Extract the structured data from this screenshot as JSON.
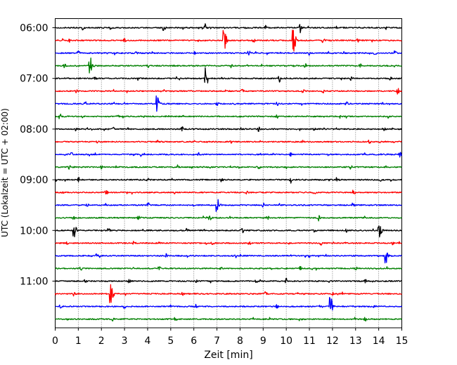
{
  "chart_data": {
    "type": "line",
    "title": "",
    "xlabel": "Zeit  [min]",
    "ylabel": "UTC (Lokalzeit = UTC + 02:00)",
    "xlim": [
      0,
      15
    ],
    "x_ticks": [
      0,
      1,
      2,
      3,
      4,
      5,
      6,
      7,
      8,
      9,
      10,
      11,
      12,
      13,
      14,
      15
    ],
    "y_tick_labels": [
      "06:00",
      "07:00",
      "08:00",
      "09:00",
      "10:00",
      "11:00"
    ],
    "y_tick_rows": [
      0,
      4,
      8,
      12,
      16,
      20
    ],
    "grid": "vertical dotted",
    "legend": "none",
    "trace_colors": [
      "#000000",
      "#ff0000",
      "#0000ff",
      "#008000"
    ],
    "trace_interval_min": 15,
    "traces": [
      {
        "start": "06:00",
        "color": "#000000",
        "events": [
          [
            1.2,
            0.4
          ],
          [
            2.4,
            0.3
          ],
          [
            4.7,
            0.5
          ],
          [
            6.5,
            0.7
          ],
          [
            9.1,
            0.35
          ],
          [
            10.6,
            1.0
          ],
          [
            12.2,
            0.35
          ],
          [
            14.3,
            0.3
          ]
        ]
      },
      {
        "start": "06:15",
        "color": "#ff0000",
        "events": [
          [
            0.6,
            0.35
          ],
          [
            3.0,
            0.3
          ],
          [
            7.3,
            2.2
          ],
          [
            8.6,
            0.3
          ],
          [
            10.3,
            2.4
          ],
          [
            11.6,
            0.35
          ],
          [
            13.1,
            0.3
          ]
        ]
      },
      {
        "start": "06:30",
        "color": "#0000ff",
        "events": [
          [
            1.0,
            0.4
          ],
          [
            3.5,
            0.35
          ],
          [
            6.0,
            0.3
          ],
          [
            8.4,
            0.3
          ],
          [
            11.0,
            0.35
          ],
          [
            13.8,
            0.4
          ],
          [
            14.7,
            0.35
          ]
        ]
      },
      {
        "start": "06:45",
        "color": "#008000",
        "events": [
          [
            0.4,
            0.3
          ],
          [
            1.5,
            1.5
          ],
          [
            4.0,
            0.3
          ],
          [
            7.6,
            0.3
          ],
          [
            10.8,
            0.35
          ],
          [
            13.2,
            0.3
          ]
        ]
      },
      {
        "start": "07:00",
        "color": "#000000",
        "events": [
          [
            1.7,
            0.4
          ],
          [
            3.6,
            0.3
          ],
          [
            6.5,
            2.4
          ],
          [
            9.7,
            0.6
          ],
          [
            12.8,
            0.35
          ],
          [
            14.5,
            0.3
          ]
        ]
      },
      {
        "start": "07:15",
        "color": "#ff0000",
        "events": [
          [
            0.9,
            0.3
          ],
          [
            4.6,
            0.35
          ],
          [
            8.1,
            0.3
          ],
          [
            10.7,
            0.4
          ],
          [
            11.6,
            0.35
          ],
          [
            14.8,
            0.9
          ]
        ]
      },
      {
        "start": "07:30",
        "color": "#0000ff",
        "events": [
          [
            1.3,
            0.3
          ],
          [
            4.4,
            1.4
          ],
          [
            7.0,
            0.35
          ],
          [
            9.6,
            0.3
          ],
          [
            12.6,
            0.4
          ]
        ]
      },
      {
        "start": "07:45",
        "color": "#008000",
        "events": [
          [
            0.2,
            0.5
          ],
          [
            2.7,
            0.3
          ],
          [
            5.5,
            0.3
          ],
          [
            9.6,
            0.35
          ],
          [
            12.3,
            0.3
          ],
          [
            14.4,
            0.3
          ]
        ]
      },
      {
        "start": "08:00",
        "color": "#000000",
        "events": [
          [
            0.9,
            0.3
          ],
          [
            2.5,
            0.3
          ],
          [
            5.5,
            0.4
          ],
          [
            8.8,
            0.35
          ],
          [
            11.2,
            0.3
          ],
          [
            14.2,
            0.4
          ]
        ]
      },
      {
        "start": "08:15",
        "color": "#ff0000",
        "events": [
          [
            1.8,
            0.3
          ],
          [
            4.4,
            0.3
          ],
          [
            7.6,
            0.3
          ],
          [
            10.7,
            0.5
          ],
          [
            13.6,
            0.3
          ]
        ]
      },
      {
        "start": "08:30",
        "color": "#0000ff",
        "events": [
          [
            0.7,
            0.3
          ],
          [
            3.7,
            0.35
          ],
          [
            6.2,
            0.3
          ],
          [
            10.2,
            0.3
          ],
          [
            14.9,
            0.6
          ]
        ]
      },
      {
        "start": "08:45",
        "color": "#008000",
        "events": [
          [
            0.6,
            0.3
          ],
          [
            2.0,
            0.35
          ],
          [
            5.3,
            0.3
          ],
          [
            8.8,
            0.3
          ],
          [
            12.8,
            0.35
          ]
        ]
      },
      {
        "start": "09:00",
        "color": "#000000",
        "events": [
          [
            1.0,
            0.45
          ],
          [
            4.0,
            0.3
          ],
          [
            7.2,
            0.3
          ],
          [
            10.2,
            0.3
          ],
          [
            12.2,
            0.7
          ],
          [
            14.1,
            0.3
          ]
        ]
      },
      {
        "start": "09:15",
        "color": "#ff0000",
        "events": [
          [
            0.3,
            0.3
          ],
          [
            2.2,
            0.35
          ],
          [
            5.2,
            0.3
          ],
          [
            8.3,
            0.35
          ],
          [
            11.2,
            0.3
          ],
          [
            12.9,
            0.55
          ]
        ]
      },
      {
        "start": "09:30",
        "color": "#0000ff",
        "events": [
          [
            1.4,
            0.3
          ],
          [
            4.0,
            0.35
          ],
          [
            7.0,
            1.3
          ],
          [
            9.0,
            0.3
          ],
          [
            12.9,
            0.45
          ]
        ]
      },
      {
        "start": "09:45",
        "color": "#008000",
        "events": [
          [
            0.8,
            0.3
          ],
          [
            3.6,
            0.3
          ],
          [
            6.7,
            0.35
          ],
          [
            9.2,
            0.3
          ],
          [
            11.4,
            0.5
          ]
        ]
      },
      {
        "start": "10:00",
        "color": "#000000",
        "events": [
          [
            0.8,
            1.3
          ],
          [
            2.3,
            0.35
          ],
          [
            5.7,
            0.3
          ],
          [
            8.1,
            0.35
          ],
          [
            11.2,
            0.5
          ],
          [
            12.6,
            0.3
          ],
          [
            14.0,
            1.6
          ]
        ]
      },
      {
        "start": "10:15",
        "color": "#ff0000",
        "events": [
          [
            0.5,
            0.3
          ],
          [
            3.4,
            0.4
          ],
          [
            6.8,
            0.35
          ],
          [
            8.4,
            0.4
          ],
          [
            11.5,
            0.3
          ],
          [
            14.6,
            0.3
          ]
        ]
      },
      {
        "start": "10:30",
        "color": "#0000ff",
        "events": [
          [
            1.8,
            0.3
          ],
          [
            4.8,
            0.3
          ],
          [
            7.8,
            0.35
          ],
          [
            11.0,
            0.3
          ],
          [
            14.3,
            1.3
          ]
        ]
      },
      {
        "start": "10:45",
        "color": "#008000",
        "events": [
          [
            1.1,
            0.3
          ],
          [
            4.5,
            0.35
          ],
          [
            7.2,
            0.3
          ],
          [
            10.6,
            0.4
          ],
          [
            13.0,
            0.3
          ]
        ]
      },
      {
        "start": "11:00",
        "color": "#000000",
        "events": [
          [
            1.3,
            0.35
          ],
          [
            3.2,
            0.45
          ],
          [
            6.1,
            0.3
          ],
          [
            8.7,
            0.3
          ],
          [
            10.0,
            0.6
          ],
          [
            13.4,
            0.35
          ]
        ]
      },
      {
        "start": "11:15",
        "color": "#ff0000",
        "events": [
          [
            0.8,
            0.3
          ],
          [
            2.4,
            1.9
          ],
          [
            5.5,
            0.3
          ],
          [
            9.1,
            0.35
          ],
          [
            12.0,
            0.3
          ]
        ]
      },
      {
        "start": "11:30",
        "color": "#0000ff",
        "events": [
          [
            0.2,
            0.35
          ],
          [
            3.0,
            0.3
          ],
          [
            6.1,
            0.35
          ],
          [
            9.6,
            0.3
          ],
          [
            11.9,
            1.8
          ],
          [
            13.8,
            0.3
          ]
        ]
      },
      {
        "start": "11:45",
        "color": "#008000",
        "events": [
          [
            0.5,
            0.3
          ],
          [
            2.5,
            0.3
          ],
          [
            5.2,
            0.35
          ],
          [
            8.0,
            0.3
          ],
          [
            10.7,
            0.3
          ],
          [
            13.4,
            0.35
          ]
        ]
      }
    ]
  }
}
